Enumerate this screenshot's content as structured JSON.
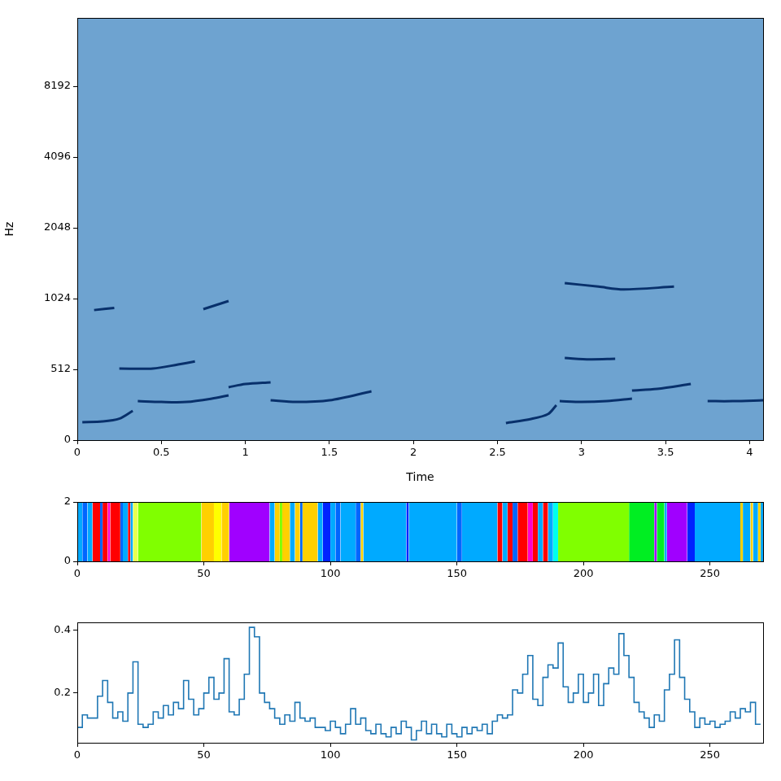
{
  "chart_data": [
    {
      "type": "spectrogram",
      "x_label": "Time",
      "y_label": "Hz",
      "xlim": [
        0,
        4.08
      ],
      "ylim": [
        0,
        16000
      ],
      "xticks": [
        0,
        0.5,
        1,
        1.5,
        2,
        2.5,
        3,
        3.5,
        4
      ],
      "yticks": [
        0,
        512,
        1024,
        2048,
        4096,
        8192
      ],
      "log": "y",
      "grid": false,
      "color": "#08306b",
      "series": [
        {
          "x": [
            0.03,
            0.15,
            0.25,
            0.33
          ],
          "values": [
            130,
            135,
            155,
            212
          ]
        },
        {
          "x": [
            0.36,
            0.5,
            0.65,
            0.8,
            0.9
          ],
          "values": [
            282,
            276,
            276,
            300,
            324
          ]
        },
        {
          "x": [
            0.9,
            1.0,
            1.15
          ],
          "values": [
            383,
            406,
            418
          ]
        },
        {
          "x": [
            1.15,
            1.3,
            1.5,
            1.75
          ],
          "values": [
            288,
            276,
            288,
            353
          ]
        },
        {
          "x": [
            2.55,
            2.7,
            2.8,
            2.85
          ],
          "values": [
            124,
            153,
            188,
            253
          ]
        },
        {
          "x": [
            2.87,
            3.0,
            3.15,
            3.3
          ],
          "values": [
            282,
            276,
            282,
            300
          ]
        },
        {
          "x": [
            3.3,
            3.45,
            3.65
          ],
          "values": [
            359,
            371,
            406
          ]
        },
        {
          "x": [
            3.75,
            3.9,
            4.08
          ],
          "values": [
            282,
            282,
            288
          ]
        },
        {
          "x": [
            0.25,
            0.45,
            0.6,
            0.7
          ],
          "values": [
            516,
            516,
            537,
            553
          ]
        },
        {
          "x": [
            2.9,
            3.05,
            3.2
          ],
          "values": [
            572,
            565,
            568
          ]
        },
        {
          "x": [
            2.9,
            3.1,
            3.25,
            3.55
          ],
          "values": [
            1192,
            1151,
            1120,
            1151
          ]
        },
        {
          "x": [
            0.1,
            0.22
          ],
          "values": [
            915,
            935
          ]
        },
        {
          "x": [
            0.75,
            0.9
          ],
          "values": [
            923,
            1000
          ]
        }
      ]
    },
    {
      "type": "segments",
      "xlim": [
        0,
        271
      ],
      "ylim": [
        0,
        2
      ],
      "xticks": [
        0,
        50,
        100,
        150,
        200,
        250
      ],
      "yticks": [
        0,
        2
      ],
      "grid": false,
      "bounds": [
        0,
        2,
        4,
        6,
        9,
        10,
        12,
        13,
        17,
        18,
        20,
        21,
        22,
        24,
        49,
        54,
        57,
        60,
        76,
        78,
        80,
        81,
        84,
        86,
        88,
        89,
        95,
        97,
        100,
        102,
        104,
        110,
        112,
        113,
        130,
        131,
        150,
        152,
        166,
        168,
        170,
        172,
        174,
        178,
        180,
        182,
        184,
        186,
        188,
        190,
        218,
        228,
        229,
        232,
        233,
        241,
        244,
        262,
        263,
        266,
        267,
        269,
        270,
        271
      ],
      "colors": [
        "#00aaff",
        "#0066ff",
        "#00aaff",
        "#ff0000",
        "#0066ff",
        "#ff0000",
        "#ff00cc",
        "#ff0000",
        "#0066ff",
        "#00aaff",
        "#ff0000",
        "#00aaff",
        "#e8ff50",
        "#80ff00",
        "#ffd000",
        "#ffff00",
        "#ffd000",
        "#a000ff",
        "#00aaff",
        "#ffd000",
        "#80ff00",
        "#ffd000",
        "#00aaff",
        "#ffd000",
        "#0066ff",
        "#ffd000",
        "#00aaff",
        "#0022ff",
        "#00aaff",
        "#0066ff",
        "#00aaff",
        "#0066ff",
        "#ffd000",
        "#00aaff",
        "#0022ff",
        "#00aaff",
        "#0066ff",
        "#00aaff",
        "#ff0000",
        "#00aaff",
        "#ff0000",
        "#0066ff",
        "#ff0000",
        "#ff00cc",
        "#ff0000",
        "#00aaff",
        "#ff0000",
        "#00aaff",
        "#00ffee",
        "#80ff00",
        "#00ee22",
        "#a000ff",
        "#00ee22",
        "#00aaff",
        "#a000ff",
        "#0022ff",
        "#00aaff",
        "#ffd000",
        "#00aaff",
        "#ffd000",
        "#00aaff",
        "#ffd000",
        "#00aaff"
      ]
    },
    {
      "type": "line",
      "line_style": "steps",
      "color": "#1f77b4",
      "grid": false,
      "xlim": [
        0,
        271
      ],
      "ylim": [
        0.041,
        0.426
      ],
      "xticks": [
        0,
        50,
        100,
        150,
        200,
        250
      ],
      "yticks": [
        0.2,
        0.4
      ],
      "x": [
        0,
        2,
        4,
        6,
        8,
        10,
        12,
        14,
        16,
        18,
        20,
        22,
        24,
        26,
        28,
        30,
        32,
        34,
        36,
        38,
        40,
        42,
        44,
        46,
        48,
        50,
        52,
        54,
        56,
        58,
        60,
        62,
        64,
        66,
        68,
        70,
        72,
        74,
        76,
        78,
        80,
        82,
        84,
        86,
        88,
        90,
        92,
        94,
        96,
        98,
        100,
        102,
        104,
        106,
        108,
        110,
        112,
        114,
        116,
        118,
        120,
        122,
        124,
        126,
        128,
        130,
        132,
        134,
        136,
        138,
        140,
        142,
        144,
        146,
        148,
        150,
        152,
        154,
        156,
        158,
        160,
        162,
        164,
        166,
        168,
        170,
        172,
        174,
        176,
        178,
        180,
        182,
        184,
        186,
        188,
        190,
        192,
        194,
        196,
        198,
        200,
        202,
        204,
        206,
        208,
        210,
        212,
        214,
        216,
        218,
        220,
        222,
        224,
        226,
        228,
        230,
        232,
        234,
        236,
        238,
        240,
        242,
        244,
        246,
        248,
        250,
        252,
        254,
        256,
        258,
        260,
        262,
        264,
        266,
        268,
        270
      ],
      "values": [
        0.07,
        0.09,
        0.13,
        0.12,
        0.12,
        0.19,
        0.24,
        0.17,
        0.12,
        0.14,
        0.11,
        0.2,
        0.3,
        0.1,
        0.09,
        0.1,
        0.14,
        0.12,
        0.16,
        0.13,
        0.17,
        0.15,
        0.24,
        0.18,
        0.13,
        0.15,
        0.2,
        0.25,
        0.18,
        0.2,
        0.31,
        0.14,
        0.13,
        0.18,
        0.26,
        0.41,
        0.38,
        0.2,
        0.17,
        0.15,
        0.12,
        0.1,
        0.13,
        0.11,
        0.17,
        0.12,
        0.11,
        0.12,
        0.09,
        0.09,
        0.08,
        0.11,
        0.09,
        0.07,
        0.1,
        0.15,
        0.1,
        0.12,
        0.08,
        0.07,
        0.1,
        0.07,
        0.06,
        0.09,
        0.07,
        0.11,
        0.09,
        0.05,
        0.08,
        0.11,
        0.07,
        0.1,
        0.07,
        0.06,
        0.1,
        0.07,
        0.06,
        0.09,
        0.07,
        0.09,
        0.08,
        0.1,
        0.07,
        0.11,
        0.13,
        0.12,
        0.13,
        0.21,
        0.2,
        0.26,
        0.32,
        0.18,
        0.16,
        0.25,
        0.29,
        0.28,
        0.36,
        0.22,
        0.17,
        0.2,
        0.26,
        0.17,
        0.2,
        0.26,
        0.16,
        0.23,
        0.28,
        0.26,
        0.39,
        0.32,
        0.25,
        0.17,
        0.14,
        0.12,
        0.09,
        0.13,
        0.11,
        0.21,
        0.26,
        0.37,
        0.25,
        0.18,
        0.14,
        0.09,
        0.12,
        0.1,
        0.11,
        0.09,
        0.1,
        0.11,
        0.14,
        0.12,
        0.15,
        0.14,
        0.17,
        0.1
      ]
    }
  ]
}
